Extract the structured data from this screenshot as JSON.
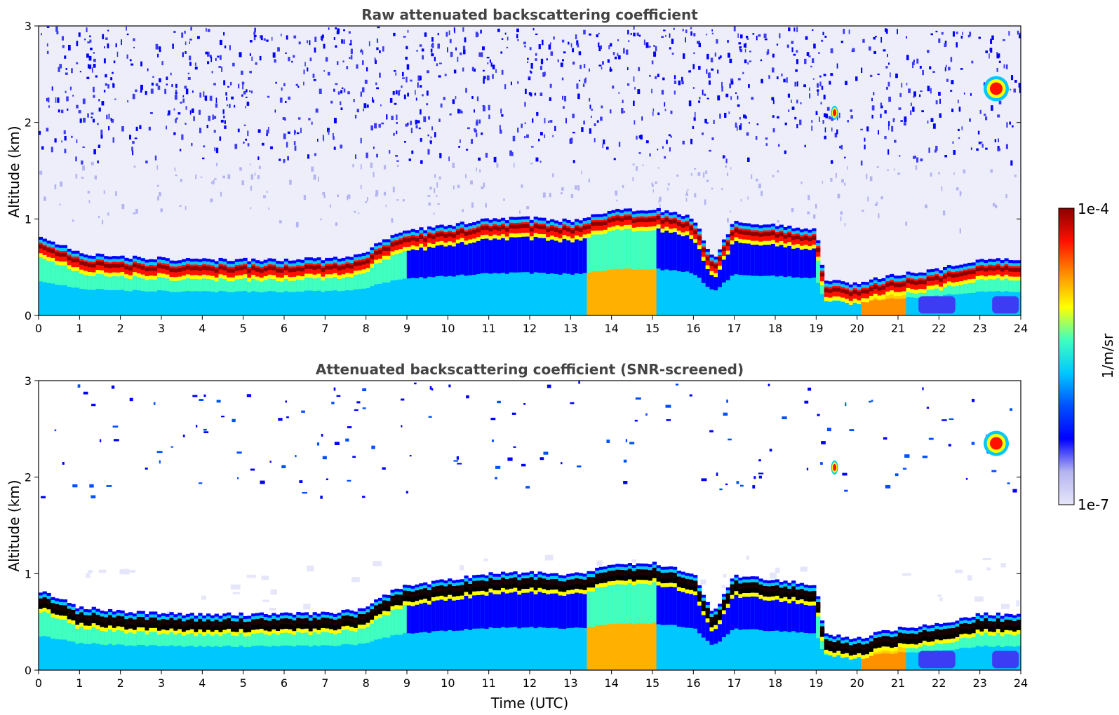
{
  "chart_data": [
    {
      "type": "heatmap",
      "title": "Raw attenuated backscattering coefficient",
      "xlabel": "",
      "ylabel": "Altitude (km)",
      "xlim": [
        0,
        24
      ],
      "ylim": [
        0,
        3
      ],
      "xticks": [
        "0",
        "1",
        "2",
        "3",
        "4",
        "5",
        "6",
        "7",
        "8",
        "9",
        "10",
        "11",
        "12",
        "13",
        "14",
        "15",
        "16",
        "17",
        "18",
        "19",
        "20",
        "21",
        "22",
        "23",
        "24"
      ],
      "yticks": [
        "0",
        "1",
        "2",
        "3"
      ],
      "screened": false,
      "layer_top_km": [
        [
          0,
          0.8
        ],
        [
          1,
          0.62
        ],
        [
          2,
          0.58
        ],
        [
          3,
          0.56
        ],
        [
          4,
          0.55
        ],
        [
          5,
          0.55
        ],
        [
          6,
          0.55
        ],
        [
          7,
          0.56
        ],
        [
          8,
          0.6
        ],
        [
          8.2,
          0.7
        ],
        [
          9,
          0.85
        ],
        [
          10,
          0.9
        ],
        [
          11,
          0.97
        ],
        [
          12,
          0.98
        ],
        [
          13,
          0.95
        ],
        [
          14,
          1.05
        ],
        [
          15,
          1.08
        ],
        [
          16,
          0.98
        ],
        [
          16.5,
          0.55
        ],
        [
          17,
          0.95
        ],
        [
          18,
          0.9
        ],
        [
          19,
          0.86
        ],
        [
          19.2,
          0.35
        ],
        [
          20,
          0.3
        ],
        [
          21,
          0.4
        ],
        [
          22,
          0.45
        ],
        [
          23,
          0.55
        ],
        [
          24,
          0.55
        ]
      ],
      "features": [
        {
          "label": "elevated cloud",
          "time": 23.4,
          "altitude_km": 2.35
        },
        {
          "label": "elevated cloud",
          "time": 19.45,
          "altitude_km": 2.1
        }
      ]
    },
    {
      "type": "heatmap",
      "title": "Attenuated backscattering coefficient (SNR-screened)",
      "xlabel": "Time (UTC)",
      "ylabel": "Altitude (km)",
      "xlim": [
        0,
        24
      ],
      "ylim": [
        0,
        3
      ],
      "xticks": [
        "0",
        "1",
        "2",
        "3",
        "4",
        "5",
        "6",
        "7",
        "8",
        "9",
        "10",
        "11",
        "12",
        "13",
        "14",
        "15",
        "16",
        "17",
        "18",
        "19",
        "20",
        "21",
        "22",
        "23",
        "24"
      ],
      "yticks": [
        "0",
        "1",
        "2",
        "3"
      ],
      "screened": true
    }
  ],
  "colorbar": {
    "label": "1/m/sr",
    "max_label": "1e-4",
    "min_label": "1e-7",
    "colormap": [
      "#e6e6fa",
      "#b4b4f0",
      "#0000ff",
      "#0050ff",
      "#00c8ff",
      "#40ffbf",
      "#ffff00",
      "#ff9000",
      "#ff1000",
      "#8b0000"
    ]
  }
}
